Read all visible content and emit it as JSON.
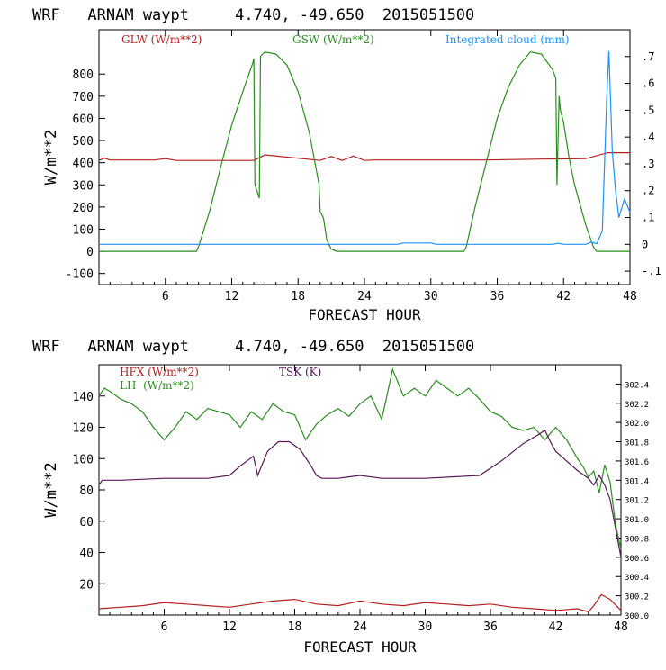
{
  "colors": {
    "red": "#b22222",
    "green": "#2e8b22",
    "blue": "#1e90ff",
    "purple": "#551a55",
    "axis": "#000000"
  },
  "chart_data": [
    {
      "type": "line",
      "title": "WRF   ARNAM waypt     4.740, -49.650  2015051500",
      "xlabel": "FORECAST HOUR",
      "ylabel": "W/m**2",
      "xlim": [
        0,
        48
      ],
      "ylim": [
        -150,
        1000
      ],
      "y2lim": [
        -0.15,
        0.8
      ],
      "xticks": [
        "6",
        "12",
        "18",
        "24",
        "30",
        "36",
        "42",
        "48"
      ],
      "yticks": [
        "-100",
        "0",
        "100",
        "200",
        "300",
        "400",
        "500",
        "600",
        "700",
        "800"
      ],
      "y2ticks": [
        "-.1",
        "0",
        ".1",
        ".2",
        ".3",
        ".4",
        ".5",
        ".6",
        ".7"
      ],
      "legend": [
        "GLW (W/m**2)",
        "GSW (W/m**2)",
        "Integrated cloud (mm)"
      ],
      "series": [
        {
          "name": "GLW (W/m**2)",
          "axis": "left",
          "color": "red",
          "x": [
            0,
            0.5,
            1,
            5,
            6,
            7,
            10,
            14,
            15,
            20,
            21,
            22,
            23,
            24,
            25,
            35,
            40,
            44,
            46,
            48
          ],
          "y": [
            410,
            420,
            412,
            412,
            418,
            410,
            410,
            410,
            435,
            410,
            428,
            410,
            430,
            410,
            412,
            412,
            416,
            418,
            445,
            445
          ]
        },
        {
          "name": "GSW (W/m**2)",
          "axis": "left",
          "color": "green",
          "x": [
            0,
            8.8,
            9,
            10,
            11,
            12,
            13,
            13.9,
            14,
            14.1,
            14.5,
            14.6,
            15,
            16,
            17,
            18,
            19,
            19.9,
            20,
            20.3,
            20.6,
            21,
            21.5,
            33,
            33.2,
            34,
            35,
            36,
            37,
            38,
            39,
            40,
            41,
            41.3,
            41.4,
            41.6,
            41.7,
            42,
            42.5,
            43,
            44,
            44.7,
            45,
            48
          ],
          "y": [
            0,
            0,
            20,
            180,
            380,
            570,
            720,
            850,
            870,
            300,
            240,
            880,
            900,
            890,
            840,
            720,
            540,
            300,
            180,
            150,
            50,
            10,
            0,
            0,
            20,
            200,
            400,
            600,
            740,
            840,
            900,
            890,
            820,
            780,
            300,
            700,
            640,
            580,
            420,
            300,
            120,
            20,
            0,
            0
          ]
        },
        {
          "name": "Integrated cloud (mm)",
          "axis": "right",
          "color": "blue",
          "x": [
            0,
            27,
            27.5,
            30,
            30.5,
            41,
            41.5,
            42,
            44,
            44.5,
            45,
            45.5,
            45.9,
            46.1,
            46.4,
            46.7,
            47,
            47.5,
            48
          ],
          "y": [
            0,
            0,
            0.005,
            0.005,
            0,
            0,
            0.004,
            0,
            0,
            0.008,
            0.002,
            0.05,
            0.55,
            0.72,
            0.35,
            0.2,
            0.1,
            0.17,
            0.12
          ]
        }
      ]
    },
    {
      "type": "line",
      "title": "WRF   ARNAM waypt     4.740, -49.650  2015051500",
      "xlabel": "FORECAST HOUR",
      "ylabel": "W/m**2",
      "xlim": [
        0,
        48
      ],
      "ylim": [
        0,
        160
      ],
      "y2lim": [
        300.0,
        302.6
      ],
      "xticks": [
        "6",
        "12",
        "18",
        "24",
        "30",
        "36",
        "42",
        "48"
      ],
      "yticks": [
        "20",
        "40",
        "60",
        "80",
        "100",
        "120",
        "140"
      ],
      "y2ticks": [
        "300.0",
        "300.2",
        "300.4",
        "300.6",
        "300.8",
        "301.0",
        "301.2",
        "301.4",
        "301.6",
        "301.8",
        "302.0",
        "302.2",
        "302.4"
      ],
      "legend": [
        "HFX (W/m**2)",
        "LH  (W/m**2)",
        "TSK (K)"
      ],
      "series": [
        {
          "name": "HFX (W/m**2)",
          "axis": "left",
          "color": "red",
          "x": [
            0,
            4,
            6,
            8,
            10,
            12,
            14,
            16,
            18,
            20,
            22,
            24,
            26,
            28,
            30,
            32,
            34,
            36,
            38,
            40,
            42,
            44,
            45,
            45.5,
            46.2,
            47,
            48
          ],
          "y": [
            4,
            6,
            8,
            7,
            6,
            5,
            7,
            9,
            10,
            7,
            6,
            9,
            7,
            6,
            8,
            7,
            6,
            7,
            5,
            4,
            3,
            4,
            2,
            6,
            13,
            10,
            3
          ]
        },
        {
          "name": "LH  (W/m**2)",
          "axis": "left",
          "color": "green",
          "x": [
            0,
            0.5,
            1,
            2,
            3,
            4,
            5,
            6,
            7,
            8,
            9,
            10,
            11,
            12,
            13,
            14,
            15,
            16,
            17,
            18,
            19,
            20,
            21,
            22,
            23,
            24,
            25,
            26,
            27,
            28,
            29,
            30,
            31,
            32,
            33,
            34,
            35,
            36,
            37,
            38,
            39,
            40,
            41,
            42,
            43,
            44,
            44.5,
            45,
            45.5,
            46,
            46.5,
            47,
            47.5,
            48
          ],
          "y": [
            140,
            145,
            143,
            138,
            135,
            130,
            120,
            112,
            120,
            130,
            125,
            132,
            130,
            128,
            120,
            130,
            125,
            135,
            130,
            128,
            112,
            122,
            128,
            132,
            127,
            135,
            140,
            125,
            157,
            140,
            145,
            140,
            150,
            145,
            140,
            145,
            138,
            130,
            127,
            120,
            118,
            120,
            112,
            120,
            112,
            100,
            95,
            88,
            92,
            78,
            96,
            85,
            58,
            42
          ]
        },
        {
          "name": "TSK (K)",
          "axis": "right",
          "color": "purple",
          "x": [
            0,
            0.3,
            2,
            6,
            10,
            12,
            13,
            14.2,
            14.6,
            15.5,
            16.5,
            17.5,
            18.5,
            19.5,
            20,
            20.5,
            22,
            24,
            26,
            30,
            35,
            37,
            39,
            40.5,
            41,
            41.5,
            42,
            43,
            44,
            45,
            45.5,
            46,
            46.5,
            47,
            47.5,
            48
          ],
          "y": [
            301.35,
            301.4,
            301.4,
            301.42,
            301.42,
            301.45,
            301.55,
            301.65,
            301.45,
            301.7,
            301.8,
            301.8,
            301.72,
            301.55,
            301.45,
            301.42,
            301.42,
            301.45,
            301.42,
            301.42,
            301.45,
            301.6,
            301.78,
            301.88,
            301.92,
            301.8,
            301.7,
            301.6,
            301.5,
            301.42,
            301.35,
            301.45,
            301.35,
            301.2,
            300.9,
            300.6
          ]
        }
      ]
    }
  ]
}
